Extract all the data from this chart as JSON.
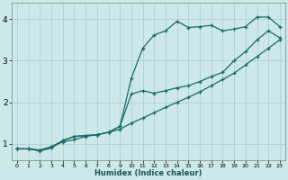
{
  "xlabel": "Humidex (Indice chaleur)",
  "bg_color": "#cce8e8",
  "grid_color": "#aacccc",
  "line_color": "#1a6b6b",
  "xlim": [
    -0.5,
    23.5
  ],
  "ylim": [
    0.6,
    4.4
  ],
  "xticks": [
    0,
    1,
    2,
    3,
    4,
    5,
    6,
    7,
    8,
    9,
    10,
    11,
    12,
    13,
    14,
    15,
    16,
    17,
    18,
    19,
    20,
    21,
    22,
    23
  ],
  "yticks": [
    1,
    2,
    3,
    4
  ],
  "line1_x": [
    0,
    1,
    2,
    3,
    4,
    5,
    6,
    7,
    8,
    9,
    10,
    11,
    12,
    13,
    14,
    15,
    16,
    17,
    18,
    19,
    20,
    21,
    22,
    23
  ],
  "line1_y": [
    0.88,
    0.88,
    0.85,
    0.93,
    1.05,
    1.1,
    1.18,
    1.22,
    1.28,
    1.35,
    1.5,
    1.62,
    1.75,
    1.88,
    2.0,
    2.12,
    2.25,
    2.4,
    2.55,
    2.7,
    2.9,
    3.1,
    3.3,
    3.5
  ],
  "line2_x": [
    0,
    1,
    2,
    3,
    4,
    5,
    6,
    7,
    8,
    9,
    10,
    11,
    12,
    13,
    14,
    15,
    16,
    17,
    18,
    19,
    20,
    21,
    22,
    23
  ],
  "line2_y": [
    0.88,
    0.88,
    0.83,
    0.9,
    1.08,
    1.18,
    1.2,
    1.22,
    1.28,
    1.42,
    2.58,
    3.3,
    3.62,
    3.72,
    3.95,
    3.8,
    3.82,
    3.85,
    3.72,
    3.76,
    3.82,
    4.05,
    4.05,
    3.82
  ],
  "line3_x": [
    0,
    1,
    2,
    3,
    4,
    5,
    6,
    7,
    8,
    9,
    10,
    11,
    12,
    13,
    14,
    15,
    16,
    17,
    18,
    19,
    20,
    21,
    22,
    23
  ],
  "line3_y": [
    0.88,
    0.88,
    0.85,
    0.93,
    1.08,
    1.18,
    1.2,
    1.22,
    1.28,
    1.42,
    2.2,
    2.28,
    2.22,
    2.28,
    2.35,
    2.4,
    2.5,
    2.62,
    2.72,
    3.0,
    3.22,
    3.5,
    3.72,
    3.55
  ]
}
